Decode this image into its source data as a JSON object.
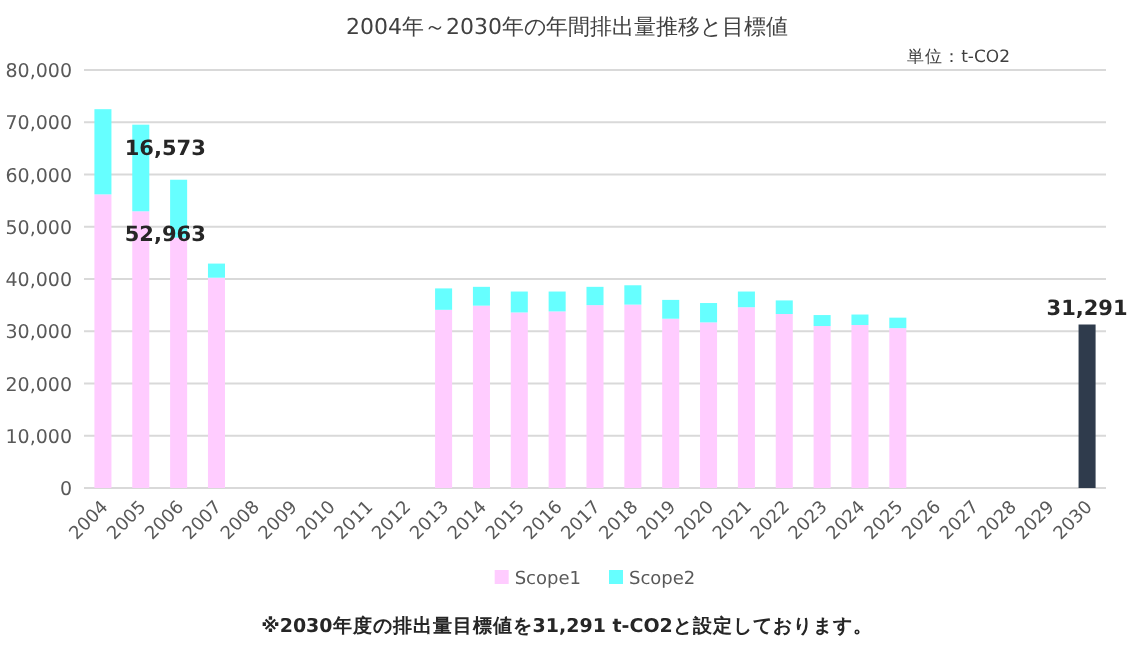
{
  "chart_data": {
    "type": "bar",
    "title": "2004年～2030年の年間排出量推移と目標値",
    "stacked": true,
    "categories": [
      "2004",
      "2005",
      "2006",
      "2007",
      "2008",
      "2009",
      "2010",
      "2011",
      "2012",
      "2013",
      "2014",
      "2015",
      "2016",
      "2017",
      "2018",
      "2019",
      "2020",
      "2021",
      "2022",
      "2023",
      "2024",
      "2025",
      "2026",
      "2027",
      "2028",
      "2029",
      "2030"
    ],
    "series": [
      {
        "name": "Scope1",
        "color": "#ffccff",
        "values": [
          56200,
          52963,
          47900,
          40250,
          null,
          null,
          null,
          null,
          null,
          34100,
          34900,
          33600,
          33800,
          35000,
          35100,
          32400,
          31700,
          34600,
          33300,
          31000,
          31200,
          30600,
          null,
          null,
          null,
          null,
          null
        ],
        "value_labels": [
          null,
          "52,963",
          null,
          null,
          null,
          null,
          null,
          null,
          null,
          null,
          null,
          null,
          null,
          null,
          null,
          null,
          null,
          null,
          null,
          null,
          null,
          null,
          null,
          null,
          null,
          null,
          null
        ]
      },
      {
        "name": "Scope2",
        "color": "#66ffff",
        "values": [
          16300,
          16573,
          11100,
          2700,
          null,
          null,
          null,
          null,
          null,
          4100,
          3600,
          4000,
          3800,
          3500,
          3700,
          3600,
          3700,
          3000,
          2600,
          2100,
          2000,
          2000,
          null,
          null,
          null,
          null,
          null
        ],
        "value_labels": [
          null,
          "16,573",
          null,
          null,
          null,
          null,
          null,
          null,
          null,
          null,
          null,
          null,
          null,
          null,
          null,
          null,
          null,
          null,
          null,
          null,
          null,
          null,
          null,
          null,
          null,
          null,
          null
        ]
      },
      {
        "color": "#2f3b4c",
        "values": [
          null,
          null,
          null,
          null,
          null,
          null,
          null,
          null,
          null,
          null,
          null,
          null,
          null,
          null,
          null,
          null,
          null,
          null,
          null,
          null,
          null,
          null,
          null,
          null,
          null,
          null,
          31291
        ],
        "value_labels": [
          null,
          null,
          null,
          null,
          null,
          null,
          null,
          null,
          null,
          null,
          null,
          null,
          null,
          null,
          null,
          null,
          null,
          null,
          null,
          null,
          null,
          null,
          null,
          null,
          null,
          null,
          "31,291"
        ]
      }
    ],
    "ylim": [
      0,
      80000
    ],
    "yticks": [
      {
        "value": 0,
        "label": "0"
      },
      {
        "value": 10000,
        "label": "10,000"
      },
      {
        "value": 20000,
        "label": "20,000"
      },
      {
        "value": 30000,
        "label": "30,000"
      },
      {
        "value": 40000,
        "label": "40,000"
      },
      {
        "value": 50000,
        "label": "50,000"
      },
      {
        "value": 60000,
        "label": "60,000"
      },
      {
        "value": 70000,
        "label": "70,000"
      },
      {
        "value": 80000,
        "label": "80,000"
      }
    ],
    "grid": "y",
    "legend": "bottom",
    "annotations": [
      "単位：t-CO2",
      "※2030年度の排出量目標値を31,291 t-CO2と設定しております。"
    ]
  }
}
